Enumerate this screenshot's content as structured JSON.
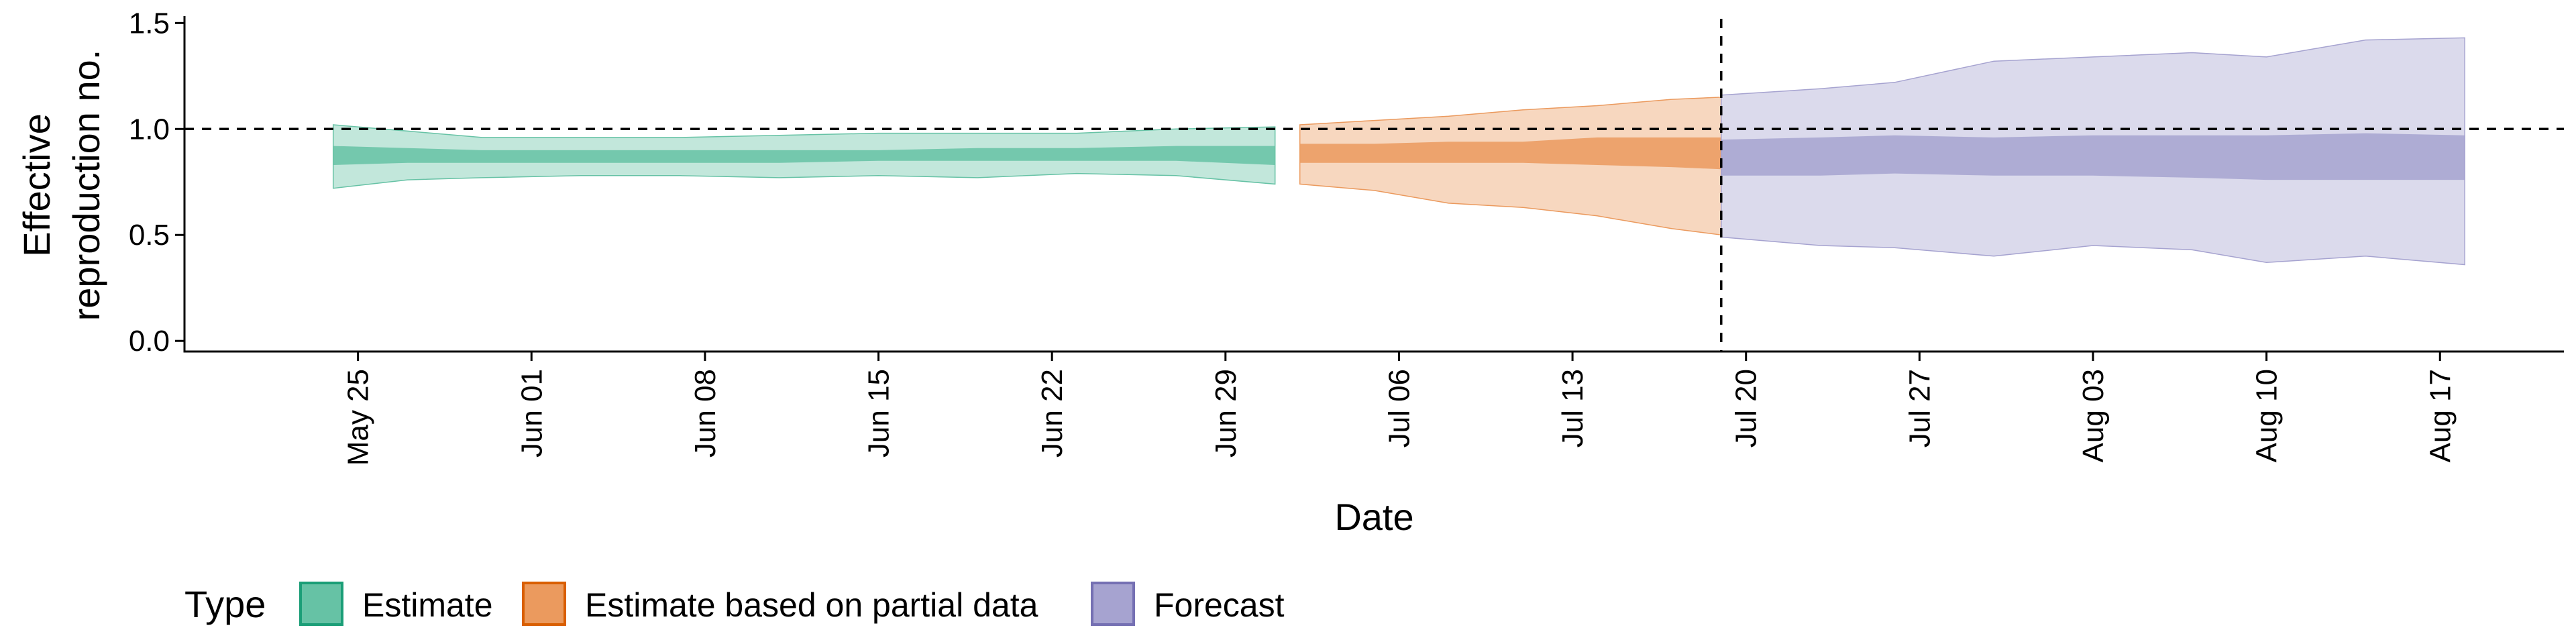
{
  "chart_data": {
    "type": "area",
    "xlabel": "Date",
    "ylabel": [
      "Effective",
      "reproduction no."
    ],
    "xlim": [
      "2020-05-18",
      "2020-08-22"
    ],
    "ylim": [
      -0.05,
      1.52
    ],
    "y_ticks": [
      {
        "value": 0.0,
        "label": "0.0"
      },
      {
        "value": 0.5,
        "label": "0.5"
      },
      {
        "value": 1.0,
        "label": "1.0"
      },
      {
        "value": 1.5,
        "label": "1.5"
      }
    ],
    "x_ticks": [
      {
        "date": "2020-05-25",
        "label": "May 25"
      },
      {
        "date": "2020-06-01",
        "label": "Jun 01"
      },
      {
        "date": "2020-06-08",
        "label": "Jun 08"
      },
      {
        "date": "2020-06-15",
        "label": "Jun 15"
      },
      {
        "date": "2020-06-22",
        "label": "Jun 22"
      },
      {
        "date": "2020-06-29",
        "label": "Jun 29"
      },
      {
        "date": "2020-07-06",
        "label": "Jul 06"
      },
      {
        "date": "2020-07-13",
        "label": "Jul 13"
      },
      {
        "date": "2020-07-20",
        "label": "Jul 20"
      },
      {
        "date": "2020-07-27",
        "label": "Jul 27"
      },
      {
        "date": "2020-08-03",
        "label": "Aug 03"
      },
      {
        "date": "2020-08-10",
        "label": "Aug 10"
      },
      {
        "date": "2020-08-17",
        "label": "Aug 17"
      }
    ],
    "reference_lines": {
      "horizontal_y": 1.0,
      "vertical_date": "2020-07-19"
    },
    "legend": {
      "title": "Type",
      "position": "bottom",
      "entries": [
        {
          "label": "Estimate",
          "fill": "#66c2a5",
          "stroke": "#1b9e77"
        },
        {
          "label": "Estimate based on partial data",
          "fill": "#eb9a5e",
          "stroke": "#d95f02"
        },
        {
          "label": "Forecast",
          "fill": "#a6a3d0",
          "stroke": "#7570b3"
        }
      ]
    },
    "series": [
      {
        "type": "Estimate",
        "color": "#66c2a5",
        "points": [
          {
            "date": "2020-05-24",
            "lower90": 0.72,
            "upper90": 1.02,
            "lower50": 0.83,
            "upper50": 0.92
          },
          {
            "date": "2020-05-27",
            "lower90": 0.76,
            "upper90": 0.99,
            "lower50": 0.84,
            "upper50": 0.91
          },
          {
            "date": "2020-05-30",
            "lower90": 0.77,
            "upper90": 0.96,
            "lower50": 0.84,
            "upper50": 0.9
          },
          {
            "date": "2020-06-03",
            "lower90": 0.78,
            "upper90": 0.96,
            "lower50": 0.84,
            "upper50": 0.9
          },
          {
            "date": "2020-06-07",
            "lower90": 0.78,
            "upper90": 0.96,
            "lower50": 0.84,
            "upper50": 0.9
          },
          {
            "date": "2020-06-11",
            "lower90": 0.77,
            "upper90": 0.97,
            "lower50": 0.84,
            "upper50": 0.9
          },
          {
            "date": "2020-06-15",
            "lower90": 0.78,
            "upper90": 0.98,
            "lower50": 0.85,
            "upper50": 0.9
          },
          {
            "date": "2020-06-19",
            "lower90": 0.77,
            "upper90": 0.98,
            "lower50": 0.85,
            "upper50": 0.91
          },
          {
            "date": "2020-06-23",
            "lower90": 0.79,
            "upper90": 0.98,
            "lower50": 0.85,
            "upper50": 0.91
          },
          {
            "date": "2020-06-27",
            "lower90": 0.78,
            "upper90": 1.0,
            "lower50": 0.85,
            "upper50": 0.92
          },
          {
            "date": "2020-07-01",
            "lower90": 0.74,
            "upper90": 1.01,
            "lower50": 0.83,
            "upper50": 0.92
          }
        ]
      },
      {
        "type": "Estimate based on partial data",
        "color": "#eb9a5e",
        "points": [
          {
            "date": "2020-07-02",
            "lower90": 0.74,
            "upper90": 1.02,
            "lower50": 0.84,
            "upper50": 0.93
          },
          {
            "date": "2020-07-05",
            "lower90": 0.71,
            "upper90": 1.04,
            "lower50": 0.84,
            "upper50": 0.93
          },
          {
            "date": "2020-07-08",
            "lower90": 0.65,
            "upper90": 1.06,
            "lower50": 0.84,
            "upper50": 0.94
          },
          {
            "date": "2020-07-11",
            "lower90": 0.63,
            "upper90": 1.09,
            "lower50": 0.84,
            "upper50": 0.94
          },
          {
            "date": "2020-07-14",
            "lower90": 0.59,
            "upper90": 1.11,
            "lower50": 0.83,
            "upper50": 0.96
          },
          {
            "date": "2020-07-17",
            "lower90": 0.53,
            "upper90": 1.14,
            "lower50": 0.82,
            "upper50": 0.96
          },
          {
            "date": "2020-07-19",
            "lower90": 0.5,
            "upper90": 1.15,
            "lower50": 0.81,
            "upper50": 0.96
          }
        ]
      },
      {
        "type": "Forecast",
        "color": "#a6a3d0",
        "points": [
          {
            "date": "2020-07-19",
            "lower90": 0.49,
            "upper90": 1.16,
            "lower50": 0.78,
            "upper50": 0.95
          },
          {
            "date": "2020-07-23",
            "lower90": 0.45,
            "upper90": 1.19,
            "lower50": 0.78,
            "upper50": 0.96
          },
          {
            "date": "2020-07-26",
            "lower90": 0.44,
            "upper90": 1.22,
            "lower50": 0.79,
            "upper50": 0.97
          },
          {
            "date": "2020-07-30",
            "lower90": 0.4,
            "upper90": 1.32,
            "lower50": 0.78,
            "upper50": 0.96
          },
          {
            "date": "2020-08-03",
            "lower90": 0.45,
            "upper90": 1.34,
            "lower50": 0.78,
            "upper50": 0.97
          },
          {
            "date": "2020-08-07",
            "lower90": 0.43,
            "upper90": 1.36,
            "lower50": 0.77,
            "upper50": 0.97
          },
          {
            "date": "2020-08-10",
            "lower90": 0.37,
            "upper90": 1.34,
            "lower50": 0.76,
            "upper50": 0.97
          },
          {
            "date": "2020-08-14",
            "lower90": 0.4,
            "upper90": 1.42,
            "lower50": 0.76,
            "upper50": 0.98
          },
          {
            "date": "2020-08-18",
            "lower90": 0.36,
            "upper90": 1.43,
            "lower50": 0.76,
            "upper50": 0.97
          }
        ]
      }
    ]
  }
}
